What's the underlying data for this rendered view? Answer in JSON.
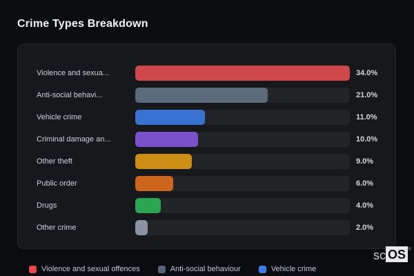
{
  "page_title": "Crime Types Breakdown",
  "chart_data": {
    "type": "bar",
    "orientation": "horizontal",
    "title": "Crime Types Breakdown",
    "categories": [
      "Violence and sexua...",
      "Anti-social behavi...",
      "Vehicle crime",
      "Criminal damage an...",
      "Other theft",
      "Public order",
      "Drugs",
      "Other crime"
    ],
    "values": [
      34.0,
      21.0,
      11.0,
      10.0,
      9.0,
      6.0,
      4.0,
      2.0
    ],
    "value_labels": [
      "34.0%",
      "21.0%",
      "11.0%",
      "10.0%",
      "9.0%",
      "6.0%",
      "4.0%",
      "2.0%"
    ],
    "bar_colors": [
      "#d0474c",
      "#5c6b7b",
      "#3a72d2",
      "#7b51cb",
      "#cc8e15",
      "#ce651c",
      "#2aa551",
      "#8a93a3"
    ],
    "xlim": [
      0,
      34
    ],
    "grid": false,
    "legend_position": "bottom",
    "legend": [
      {
        "label": "Violence and sexual offences",
        "color": "#e5484e"
      },
      {
        "label": "Anti-social behaviour",
        "color": "#56667a"
      },
      {
        "label": "Vehicle crime",
        "color": "#3d7be8"
      }
    ]
  },
  "branding": {
    "prefix": "sc",
    "suffix": "OS",
    "mark": "®"
  }
}
